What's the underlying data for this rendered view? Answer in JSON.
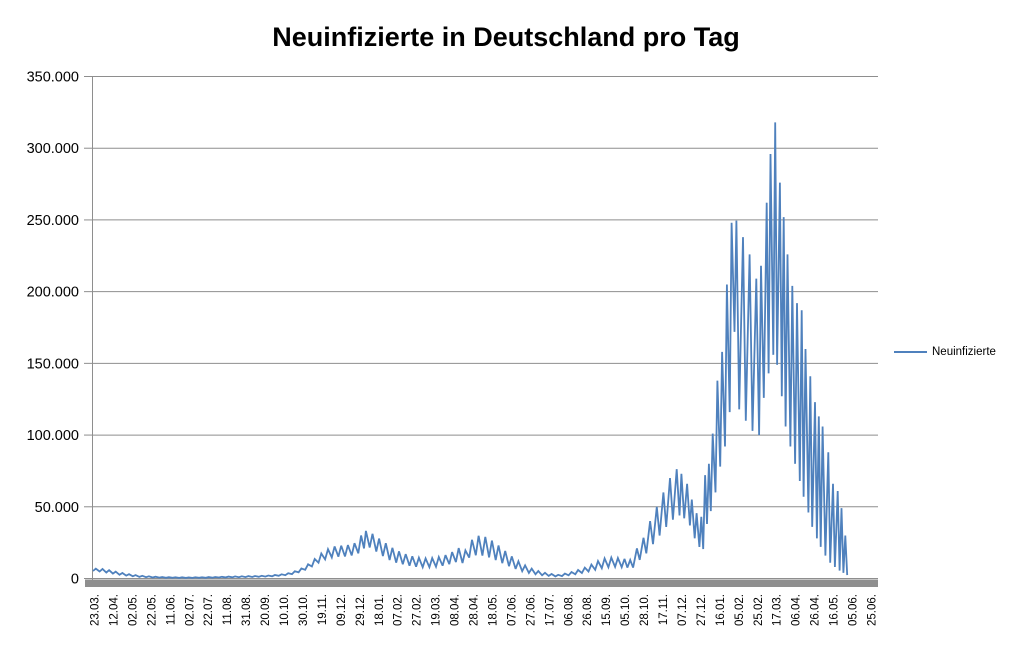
{
  "title": "Neuinfizierte in Deutschland pro Tag",
  "legend": {
    "label": "Neuinfizierte"
  },
  "colors": {
    "line": "#4F81BD",
    "gridline": "#8E8E8E",
    "axis_bar": "#8F8F8F",
    "text": "#000000",
    "background": "#FFFFFF"
  },
  "y_axis": {
    "tick_labels": [
      "350.000",
      "300.000",
      "250.000",
      "200.000",
      "150.000",
      "100.000",
      "50.000",
      "0"
    ]
  },
  "chart_data": {
    "type": "line",
    "title": "Neuinfizierte in Deutschland pro Tag",
    "xlabel": "",
    "ylabel": "",
    "ylim": [
      0,
      350000
    ],
    "y_tick_values": [
      0,
      50000,
      100000,
      150000,
      200000,
      250000,
      300000,
      350000
    ],
    "y_tick_labels": [
      "0",
      "50.000",
      "100.000",
      "150.000",
      "200.000",
      "250.000",
      "300.000",
      "350.000"
    ],
    "x_tick_labels": [
      "23.03.",
      "12.04.",
      "02.05.",
      "22.05.",
      "11.06.",
      "02.07.",
      "22.07.",
      "11.08.",
      "31.08.",
      "20.09.",
      "10.10.",
      "30.10.",
      "19.11.",
      "09.12.",
      "29.12.",
      "18.01.",
      "07.02.",
      "27.02.",
      "19.03.",
      "08.04.",
      "28.04.",
      "18.05.",
      "07.06.",
      "27.06.",
      "17.07.",
      "06.08.",
      "26.08.",
      "15.09.",
      "05.10.",
      "28.10.",
      "17.11.",
      "07.12.",
      "27.12.",
      "16.01.",
      "05.02.",
      "25.02.",
      "17.03.",
      "06.04.",
      "26.04.",
      "16.05.",
      "05.06.",
      "25.06."
    ],
    "days_between_x_labels": 20,
    "x_axis_day_span": 828,
    "grid": "horizontal",
    "legend_position": "right",
    "series": [
      {
        "name": "Neuinfizierte",
        "color": "#4F81BD",
        "points_day_value": [
          [
            0,
            5200
          ],
          [
            3,
            6900
          ],
          [
            7,
            4900
          ],
          [
            10,
            6600
          ],
          [
            14,
            4200
          ],
          [
            17,
            5800
          ],
          [
            21,
            3400
          ],
          [
            24,
            4800
          ],
          [
            28,
            2600
          ],
          [
            31,
            3800
          ],
          [
            35,
            2000
          ],
          [
            38,
            3000
          ],
          [
            42,
            1500
          ],
          [
            45,
            2400
          ],
          [
            49,
            1150
          ],
          [
            52,
            1900
          ],
          [
            56,
            900
          ],
          [
            59,
            1500
          ],
          [
            63,
            720
          ],
          [
            66,
            1250
          ],
          [
            70,
            600
          ],
          [
            73,
            1060
          ],
          [
            77,
            520
          ],
          [
            80,
            940
          ],
          [
            84,
            470
          ],
          [
            87,
            860
          ],
          [
            91,
            440
          ],
          [
            94,
            810
          ],
          [
            98,
            430
          ],
          [
            101,
            790
          ],
          [
            105,
            440
          ],
          [
            108,
            810
          ],
          [
            112,
            470
          ],
          [
            115,
            870
          ],
          [
            119,
            520
          ],
          [
            122,
            960
          ],
          [
            126,
            590
          ],
          [
            129,
            1080
          ],
          [
            133,
            670
          ],
          [
            136,
            1210
          ],
          [
            140,
            760
          ],
          [
            143,
            1340
          ],
          [
            147,
            850
          ],
          [
            150,
            1460
          ],
          [
            154,
            930
          ],
          [
            157,
            1560
          ],
          [
            161,
            990
          ],
          [
            164,
            1640
          ],
          [
            168,
            1060
          ],
          [
            171,
            1740
          ],
          [
            175,
            1160
          ],
          [
            178,
            1890
          ],
          [
            182,
            1310
          ],
          [
            185,
            2110
          ],
          [
            189,
            1530
          ],
          [
            192,
            2430
          ],
          [
            196,
            1850
          ],
          [
            199,
            2900
          ],
          [
            203,
            2330
          ],
          [
            206,
            3700
          ],
          [
            210,
            3100
          ],
          [
            213,
            5000
          ],
          [
            217,
            4300
          ],
          [
            220,
            7000
          ],
          [
            224,
            6100
          ],
          [
            227,
            9900
          ],
          [
            231,
            8400
          ],
          [
            234,
            13600
          ],
          [
            238,
            11000
          ],
          [
            241,
            17400
          ],
          [
            245,
            13300
          ],
          [
            248,
            20400
          ],
          [
            252,
            14700
          ],
          [
            255,
            22300
          ],
          [
            259,
            15200
          ],
          [
            262,
            22900
          ],
          [
            266,
            15400
          ],
          [
            269,
            23300
          ],
          [
            273,
            16100
          ],
          [
            276,
            24600
          ],
          [
            280,
            17600
          ],
          [
            283,
            30000
          ],
          [
            286,
            21000
          ],
          [
            288,
            33200
          ],
          [
            292,
            21600
          ],
          [
            295,
            31200
          ],
          [
            299,
            18800
          ],
          [
            302,
            27800
          ],
          [
            306,
            15600
          ],
          [
            309,
            24600
          ],
          [
            313,
            12900
          ],
          [
            316,
            21400
          ],
          [
            320,
            11100
          ],
          [
            323,
            18900
          ],
          [
            327,
            9900
          ],
          [
            330,
            17000
          ],
          [
            334,
            8900
          ],
          [
            337,
            15500
          ],
          [
            341,
            8200
          ],
          [
            344,
            14500
          ],
          [
            348,
            7900
          ],
          [
            351,
            14000
          ],
          [
            355,
            7900
          ],
          [
            358,
            14200
          ],
          [
            362,
            8200
          ],
          [
            365,
            15000
          ],
          [
            369,
            8900
          ],
          [
            372,
            16300
          ],
          [
            376,
            10000
          ],
          [
            379,
            18400
          ],
          [
            383,
            11400
          ],
          [
            386,
            21200
          ],
          [
            390,
            10800
          ],
          [
            393,
            19600
          ],
          [
            397,
            14600
          ],
          [
            400,
            27000
          ],
          [
            404,
            16200
          ],
          [
            407,
            29800
          ],
          [
            411,
            16000
          ],
          [
            414,
            29000
          ],
          [
            418,
            14700
          ],
          [
            421,
            26400
          ],
          [
            425,
            12800
          ],
          [
            428,
            23000
          ],
          [
            432,
            10700
          ],
          [
            435,
            19200
          ],
          [
            439,
            8600
          ],
          [
            442,
            15400
          ],
          [
            446,
            6700
          ],
          [
            449,
            12000
          ],
          [
            453,
            5100
          ],
          [
            456,
            9100
          ],
          [
            460,
            3900
          ],
          [
            463,
            6900
          ],
          [
            467,
            2900
          ],
          [
            470,
            5200
          ],
          [
            474,
            2250
          ],
          [
            477,
            4000
          ],
          [
            481,
            1780
          ],
          [
            484,
            3150
          ],
          [
            488,
            1440
          ],
          [
            491,
            2600
          ],
          [
            495,
            1700
          ],
          [
            498,
            3400
          ],
          [
            502,
            2200
          ],
          [
            505,
            4500
          ],
          [
            509,
            2900
          ],
          [
            512,
            5900
          ],
          [
            516,
            3800
          ],
          [
            519,
            7600
          ],
          [
            523,
            4900
          ],
          [
            526,
            9700
          ],
          [
            530,
            6100
          ],
          [
            533,
            12100
          ],
          [
            537,
            7200
          ],
          [
            540,
            14000
          ],
          [
            544,
            7900
          ],
          [
            547,
            14600
          ],
          [
            551,
            8100
          ],
          [
            554,
            14300
          ],
          [
            558,
            7900
          ],
          [
            561,
            13700
          ],
          [
            564,
            7600
          ],
          [
            567,
            12900
          ],
          [
            570,
            7600
          ],
          [
            574,
            21000
          ],
          [
            577,
            13000
          ],
          [
            581,
            28400
          ],
          [
            584,
            17500
          ],
          [
            588,
            40000
          ],
          [
            591,
            24000
          ],
          [
            595,
            50000
          ],
          [
            598,
            30000
          ],
          [
            602,
            60000
          ],
          [
            605,
            36000
          ],
          [
            609,
            70000
          ],
          [
            612,
            41000
          ],
          [
            616,
            76200
          ],
          [
            619,
            44000
          ],
          [
            621,
            73000
          ],
          [
            624,
            42000
          ],
          [
            627,
            66000
          ],
          [
            630,
            37000
          ],
          [
            632,
            55000
          ],
          [
            635,
            28000
          ],
          [
            637,
            45500
          ],
          [
            640,
            22000
          ],
          [
            642,
            43000
          ],
          [
            644,
            20500
          ],
          [
            646,
            72000
          ],
          [
            648,
            38000
          ],
          [
            650,
            80000
          ],
          [
            652,
            47000
          ],
          [
            654,
            101000
          ],
          [
            657,
            60000
          ],
          [
            659,
            138000
          ],
          [
            662,
            78000
          ],
          [
            664,
            158000
          ],
          [
            667,
            92000
          ],
          [
            669,
            205000
          ],
          [
            672,
            116000
          ],
          [
            674,
            248000
          ],
          [
            677,
            172000
          ],
          [
            679,
            249500
          ],
          [
            682,
            118000
          ],
          [
            686,
            238000
          ],
          [
            689,
            110000
          ],
          [
            693,
            226000
          ],
          [
            696,
            103000
          ],
          [
            700,
            209000
          ],
          [
            703,
            100000
          ],
          [
            705,
            218000
          ],
          [
            708,
            126000
          ],
          [
            711,
            262000
          ],
          [
            713,
            143000
          ],
          [
            715,
            296000
          ],
          [
            718,
            156000
          ],
          [
            720,
            318000
          ],
          [
            722,
            149000
          ],
          [
            725,
            276000
          ],
          [
            727,
            127000
          ],
          [
            729,
            252000
          ],
          [
            731,
            106000
          ],
          [
            733,
            226000
          ],
          [
            736,
            92000
          ],
          [
            738,
            204000
          ],
          [
            741,
            80000
          ],
          [
            743,
            192000
          ],
          [
            746,
            68000
          ],
          [
            748,
            187000
          ],
          [
            750,
            57000
          ],
          [
            752,
            160000
          ],
          [
            755,
            46000
          ],
          [
            757,
            141000
          ],
          [
            759,
            36000
          ],
          [
            762,
            123000
          ],
          [
            764,
            28000
          ],
          [
            766,
            113000
          ],
          [
            768,
            22000
          ],
          [
            770,
            106000
          ],
          [
            773,
            16000
          ],
          [
            776,
            88000
          ],
          [
            778,
            11000
          ],
          [
            781,
            66000
          ],
          [
            783,
            8000
          ],
          [
            786,
            61000
          ],
          [
            788,
            5500
          ],
          [
            790,
            49000
          ],
          [
            792,
            4000
          ],
          [
            794,
            30000
          ],
          [
            796,
            2400
          ]
        ]
      }
    ]
  }
}
